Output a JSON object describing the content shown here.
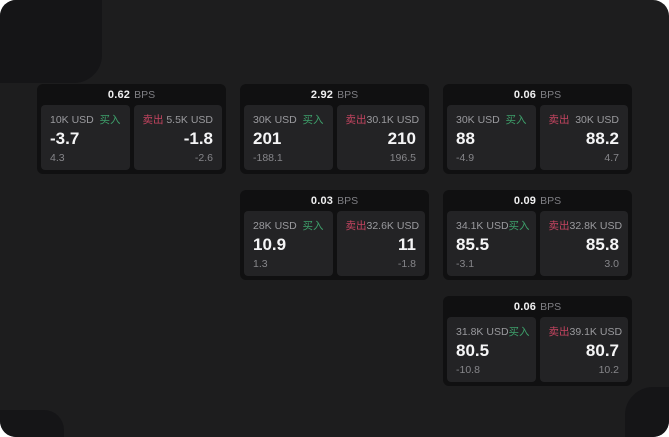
{
  "labels": {
    "bps": "BPS",
    "buy": "买入",
    "sell": "卖出"
  },
  "colors": {
    "canvas_bg": "#1d1d1e",
    "corner_deco": "#151517",
    "card_bg": "#101011",
    "panel_bg": "#232325",
    "buy_green": "#3ea06b",
    "sell_red": "#c44460",
    "value_white": "#f5f5f6",
    "muted_gray": "#9a9a9e"
  },
  "cards": [
    {
      "row": 1,
      "col": 1,
      "bps": "0.62",
      "buy": {
        "notional": "10K USD",
        "price": "-3.7",
        "delta": "4.3"
      },
      "sell": {
        "notional": "5.5K USD",
        "price": "-1.8",
        "delta": "-2.6"
      }
    },
    {
      "row": 1,
      "col": 2,
      "bps": "2.92",
      "buy": {
        "notional": "30K USD",
        "price": "201",
        "delta": "-188.1"
      },
      "sell": {
        "notional": "30.1K USD",
        "price": "210",
        "delta": "196.5"
      }
    },
    {
      "row": 1,
      "col": 3,
      "bps": "0.06",
      "buy": {
        "notional": "30K USD",
        "price": "88",
        "delta": "-4.9"
      },
      "sell": {
        "notional": "30K USD",
        "price": "88.2",
        "delta": "4.7"
      }
    },
    {
      "row": 2,
      "col": 2,
      "bps": "0.03",
      "buy": {
        "notional": "28K USD",
        "price": "10.9",
        "delta": "1.3"
      },
      "sell": {
        "notional": "32.6K USD",
        "price": "11",
        "delta": "-1.8"
      }
    },
    {
      "row": 2,
      "col": 3,
      "bps": "0.09",
      "buy": {
        "notional": "34.1K USD",
        "price": "85.5",
        "delta": "-3.1"
      },
      "sell": {
        "notional": "32.8K USD",
        "price": "85.8",
        "delta": "3.0"
      }
    },
    {
      "row": 3,
      "col": 3,
      "bps": "0.06",
      "buy": {
        "notional": "31.8K USD",
        "price": "80.5",
        "delta": "-10.8"
      },
      "sell": {
        "notional": "39.1K USD",
        "price": "80.7",
        "delta": "10.2"
      }
    }
  ]
}
